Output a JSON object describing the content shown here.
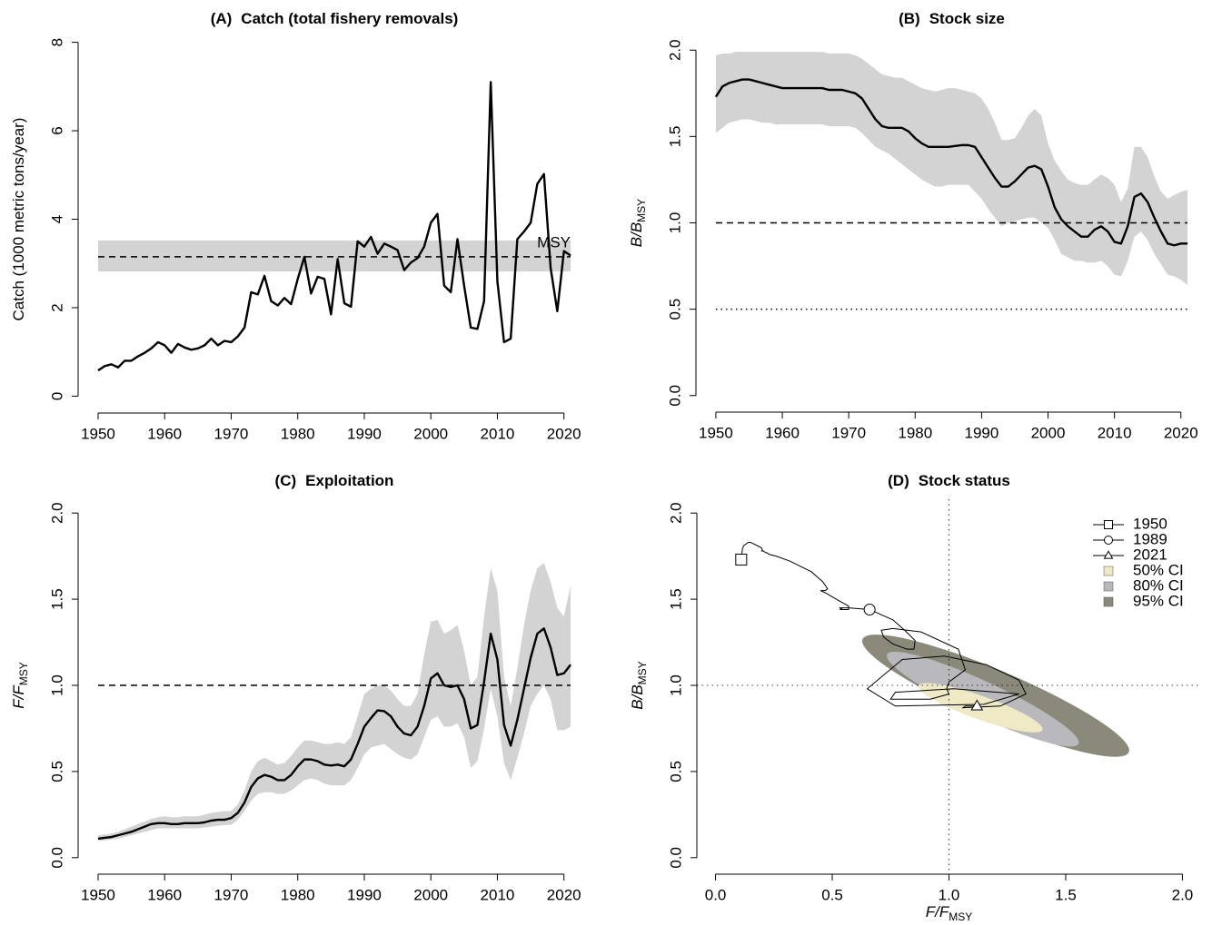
{
  "chart_data": [
    {
      "type": "line",
      "panel": "(A)",
      "title": "Catch (total fishery removals)",
      "ylabel": {
        "main": "Catch (1000 metric tons/year)"
      },
      "x": [
        1950,
        1951,
        1952,
        1953,
        1954,
        1955,
        1956,
        1957,
        1958,
        1959,
        1960,
        1961,
        1962,
        1963,
        1964,
        1965,
        1966,
        1967,
        1968,
        1969,
        1970,
        1971,
        1972,
        1973,
        1974,
        1975,
        1976,
        1977,
        1978,
        1979,
        1980,
        1981,
        1982,
        1983,
        1984,
        1985,
        1986,
        1987,
        1988,
        1989,
        1990,
        1991,
        1992,
        1993,
        1994,
        1995,
        1996,
        1997,
        1998,
        1999,
        2000,
        2001,
        2002,
        2003,
        2004,
        2005,
        2006,
        2007,
        2008,
        2009,
        2010,
        2011,
        2012,
        2013,
        2014,
        2015,
        2016,
        2017,
        2018,
        2019,
        2020,
        2021
      ],
      "xlim": [
        1947,
        2024
      ],
      "xticks": [
        1950,
        1960,
        1970,
        1980,
        1990,
        2000,
        2010,
        2020
      ],
      "ylim": [
        -0.32,
        8.32
      ],
      "yticks": [
        0,
        2,
        4,
        6,
        8
      ],
      "series": [
        {
          "color": "#000000",
          "values": [
            0.58,
            0.68,
            0.72,
            0.65,
            0.8,
            0.8,
            0.9,
            0.98,
            1.08,
            1.22,
            1.15,
            0.98,
            1.18,
            1.1,
            1.05,
            1.08,
            1.15,
            1.3,
            1.15,
            1.25,
            1.22,
            1.35,
            1.55,
            2.35,
            2.3,
            2.72,
            2.15,
            2.05,
            2.22,
            2.08,
            2.65,
            3.15,
            2.32,
            2.7,
            2.65,
            1.85,
            3.1,
            2.1,
            2.02,
            3.5,
            3.38,
            3.6,
            3.22,
            3.45,
            3.38,
            3.3,
            2.85,
            3.02,
            3.12,
            3.38,
            3.92,
            4.12,
            2.5,
            2.35,
            3.55,
            2.5,
            1.55,
            1.52,
            2.15,
            7.1,
            2.6,
            1.22,
            1.3,
            3.55,
            3.72,
            3.92,
            4.8,
            5.02,
            2.9,
            1.92,
            3.28,
            3.18
          ]
        }
      ],
      "reference_lines": [
        {
          "label": "MSY",
          "value": 3.15,
          "lower": 2.82,
          "upper": 3.52,
          "style": "dashed",
          "band_color": "#d3d3d3"
        }
      ]
    },
    {
      "type": "line",
      "panel": "(B)",
      "title": "Stock size",
      "ylabel": {
        "main": "B/B",
        "sub": "MSY"
      },
      "x": [
        1950,
        1951,
        1952,
        1953,
        1954,
        1955,
        1956,
        1957,
        1958,
        1959,
        1960,
        1961,
        1962,
        1963,
        1964,
        1965,
        1966,
        1967,
        1968,
        1969,
        1970,
        1971,
        1972,
        1973,
        1974,
        1975,
        1976,
        1977,
        1978,
        1979,
        1980,
        1981,
        1982,
        1983,
        1984,
        1985,
        1986,
        1987,
        1988,
        1989,
        1990,
        1991,
        1992,
        1993,
        1994,
        1995,
        1996,
        1997,
        1998,
        1999,
        2000,
        2001,
        2002,
        2003,
        2004,
        2005,
        2006,
        2007,
        2008,
        2009,
        2010,
        2011,
        2012,
        2013,
        2014,
        2015,
        2016,
        2017,
        2018,
        2019,
        2020,
        2021
      ],
      "xlim": [
        1947,
        2024
      ],
      "xticks": [
        1950,
        1960,
        1970,
        1980,
        1990,
        2000,
        2010,
        2020
      ],
      "ylim": [
        -0.08,
        2.08
      ],
      "yticks": [
        {
          "value": 0,
          "label": "0.0"
        },
        0.5,
        {
          "value": 1,
          "label": "1.0"
        },
        1.5,
        {
          "value": 2,
          "label": "2.0"
        }
      ],
      "series": [
        {
          "color": "#000000",
          "band_color": "#d3d3d3",
          "values": [
            1.73,
            1.79,
            1.81,
            1.82,
            1.83,
            1.83,
            1.82,
            1.81,
            1.8,
            1.79,
            1.78,
            1.78,
            1.78,
            1.78,
            1.78,
            1.78,
            1.78,
            1.77,
            1.77,
            1.77,
            1.76,
            1.75,
            1.72,
            1.66,
            1.6,
            1.56,
            1.55,
            1.55,
            1.55,
            1.53,
            1.49,
            1.46,
            1.44,
            1.44,
            1.44,
            1.44,
            1.445,
            1.45,
            1.45,
            1.44,
            1.38,
            1.32,
            1.26,
            1.21,
            1.21,
            1.24,
            1.28,
            1.32,
            1.33,
            1.31,
            1.21,
            1.09,
            1.02,
            0.98,
            0.95,
            0.92,
            0.92,
            0.96,
            0.98,
            0.95,
            0.89,
            0.88,
            0.98,
            1.15,
            1.17,
            1.12,
            1.03,
            0.95,
            0.88,
            0.87,
            0.88,
            0.88
          ],
          "upper": [
            1.97,
            1.98,
            1.98,
            1.99,
            1.99,
            1.99,
            1.99,
            1.99,
            1.99,
            1.99,
            1.99,
            1.99,
            1.99,
            1.99,
            1.99,
            1.99,
            1.99,
            1.98,
            1.98,
            1.98,
            1.98,
            1.97,
            1.95,
            1.92,
            1.89,
            1.86,
            1.85,
            1.84,
            1.84,
            1.82,
            1.8,
            1.78,
            1.77,
            1.76,
            1.77,
            1.78,
            1.78,
            1.77,
            1.76,
            1.75,
            1.72,
            1.66,
            1.58,
            1.48,
            1.48,
            1.49,
            1.55,
            1.62,
            1.66,
            1.62,
            1.46,
            1.36,
            1.3,
            1.25,
            1.23,
            1.22,
            1.22,
            1.25,
            1.28,
            1.26,
            1.22,
            1.12,
            1.2,
            1.44,
            1.44,
            1.38,
            1.27,
            1.18,
            1.14,
            1.16,
            1.18,
            1.19
          ],
          "lower": [
            1.52,
            1.55,
            1.58,
            1.59,
            1.6,
            1.6,
            1.59,
            1.58,
            1.58,
            1.57,
            1.57,
            1.57,
            1.57,
            1.57,
            1.57,
            1.57,
            1.57,
            1.56,
            1.56,
            1.56,
            1.56,
            1.55,
            1.52,
            1.48,
            1.44,
            1.42,
            1.4,
            1.37,
            1.34,
            1.31,
            1.28,
            1.25,
            1.23,
            1.21,
            1.21,
            1.22,
            1.22,
            1.22,
            1.22,
            1.18,
            1.14,
            1.08,
            1.03,
            0.98,
            1.0,
            1.01,
            1.02,
            1.03,
            1.03,
            1.0,
            0.97,
            0.9,
            0.82,
            0.8,
            0.78,
            0.78,
            0.77,
            0.77,
            0.78,
            0.75,
            0.7,
            0.69,
            0.78,
            0.92,
            0.95,
            0.9,
            0.82,
            0.76,
            0.7,
            0.69,
            0.67,
            0.64
          ]
        }
      ],
      "reference_lines": [
        {
          "value": 1,
          "style": "dashed"
        },
        {
          "value": 0.5,
          "style": "dotted"
        }
      ]
    },
    {
      "type": "line",
      "panel": "(C)",
      "title": "Exploitation",
      "ylabel": {
        "main": "F/F",
        "sub": "MSY"
      },
      "x": [
        1950,
        1951,
        1952,
        1953,
        1954,
        1955,
        1956,
        1957,
        1958,
        1959,
        1960,
        1961,
        1962,
        1963,
        1964,
        1965,
        1966,
        1967,
        1968,
        1969,
        1970,
        1971,
        1972,
        1973,
        1974,
        1975,
        1976,
        1977,
        1978,
        1979,
        1980,
        1981,
        1982,
        1983,
        1984,
        1985,
        1986,
        1987,
        1988,
        1989,
        1990,
        1991,
        1992,
        1993,
        1994,
        1995,
        1996,
        1997,
        1998,
        1999,
        2000,
        2001,
        2002,
        2003,
        2004,
        2005,
        2006,
        2007,
        2008,
        2009,
        2010,
        2011,
        2012,
        2013,
        2014,
        2015,
        2016,
        2017,
        2018,
        2019,
        2020,
        2021
      ],
      "xlim": [
        1947,
        2024
      ],
      "xticks": [
        1950,
        1960,
        1970,
        1980,
        1990,
        2000,
        2010,
        2020
      ],
      "ylim": [
        -0.08,
        2.08
      ],
      "yticks": [
        {
          "value": 0,
          "label": "0.0"
        },
        0.5,
        {
          "value": 1,
          "label": "1.0"
        },
        1.5,
        {
          "value": 2,
          "label": "2.0"
        }
      ],
      "series": [
        {
          "color": "#000000",
          "band_color": "#d3d3d3",
          "values": [
            0.11,
            0.115,
            0.12,
            0.13,
            0.14,
            0.15,
            0.165,
            0.18,
            0.195,
            0.2,
            0.2,
            0.195,
            0.195,
            0.2,
            0.2,
            0.2,
            0.205,
            0.215,
            0.22,
            0.22,
            0.23,
            0.26,
            0.32,
            0.41,
            0.46,
            0.48,
            0.47,
            0.45,
            0.45,
            0.48,
            0.53,
            0.57,
            0.57,
            0.56,
            0.54,
            0.535,
            0.54,
            0.53,
            0.57,
            0.66,
            0.76,
            0.81,
            0.855,
            0.85,
            0.82,
            0.76,
            0.72,
            0.71,
            0.76,
            0.88,
            1.04,
            1.07,
            1.0,
            0.99,
            1.0,
            0.92,
            0.75,
            0.77,
            1.02,
            1.3,
            1.15,
            0.77,
            0.65,
            0.8,
            0.98,
            1.16,
            1.3,
            1.33,
            1.22,
            1.06,
            1.07,
            1.12
          ],
          "upper": [
            0.13,
            0.135,
            0.14,
            0.15,
            0.165,
            0.18,
            0.195,
            0.21,
            0.225,
            0.235,
            0.24,
            0.235,
            0.235,
            0.24,
            0.24,
            0.24,
            0.25,
            0.26,
            0.265,
            0.27,
            0.27,
            0.31,
            0.39,
            0.5,
            0.56,
            0.58,
            0.56,
            0.54,
            0.55,
            0.59,
            0.64,
            0.68,
            0.68,
            0.67,
            0.66,
            0.66,
            0.67,
            0.66,
            0.7,
            0.82,
            0.95,
            0.98,
            1.0,
            1.0,
            0.97,
            0.92,
            0.88,
            0.88,
            0.95,
            1.18,
            1.37,
            1.38,
            1.3,
            1.32,
            1.35,
            1.2,
            1.0,
            1.05,
            1.4,
            1.68,
            1.55,
            1.05,
            0.88,
            1.1,
            1.35,
            1.55,
            1.68,
            1.71,
            1.6,
            1.45,
            1.4,
            1.58
          ],
          "lower": [
            0.1,
            0.1,
            0.105,
            0.11,
            0.12,
            0.13,
            0.14,
            0.15,
            0.16,
            0.17,
            0.17,
            0.17,
            0.17,
            0.17,
            0.17,
            0.17,
            0.175,
            0.18,
            0.185,
            0.19,
            0.19,
            0.22,
            0.27,
            0.33,
            0.37,
            0.38,
            0.38,
            0.37,
            0.37,
            0.39,
            0.42,
            0.45,
            0.46,
            0.45,
            0.43,
            0.42,
            0.42,
            0.42,
            0.45,
            0.52,
            0.6,
            0.64,
            0.65,
            0.66,
            0.63,
            0.6,
            0.58,
            0.57,
            0.6,
            0.7,
            0.8,
            0.82,
            0.76,
            0.76,
            0.78,
            0.7,
            0.52,
            0.56,
            0.75,
            0.98,
            0.82,
            0.55,
            0.45,
            0.58,
            0.72,
            0.88,
            0.95,
            1.0,
            0.92,
            0.74,
            0.74,
            0.76
          ]
        }
      ],
      "reference_lines": [
        {
          "value": 1,
          "style": "dashed"
        }
      ]
    },
    {
      "type": "phase",
      "panel": "(D)",
      "title": "Stock status",
      "xlabel": {
        "main": "F/F",
        "sub": "MSY"
      },
      "ylabel": {
        "main": "B/B",
        "sub": "MSY"
      },
      "xlim": [
        -0.08,
        2.08
      ],
      "xticks": [
        {
          "value": 0,
          "label": "0.0"
        },
        0.5,
        {
          "value": 1,
          "label": "1.0"
        },
        1.5,
        {
          "value": 2,
          "label": "2.0"
        }
      ],
      "ylim": [
        -0.08,
        2.08
      ],
      "yticks": [
        {
          "value": 0,
          "label": "0.0"
        },
        0.5,
        {
          "value": 1,
          "label": "1.0"
        },
        1.5,
        {
          "value": 2,
          "label": "2.0"
        }
      ],
      "trajectory": {
        "color": "#000000",
        "x": [
          0.11,
          0.115,
          0.12,
          0.13,
          0.14,
          0.15,
          0.165,
          0.18,
          0.195,
          0.2,
          0.2,
          0.195,
          0.195,
          0.2,
          0.2,
          0.2,
          0.205,
          0.215,
          0.22,
          0.22,
          0.23,
          0.26,
          0.32,
          0.41,
          0.46,
          0.48,
          0.47,
          0.45,
          0.45,
          0.48,
          0.53,
          0.57,
          0.57,
          0.56,
          0.54,
          0.535,
          0.54,
          0.53,
          0.57,
          0.66,
          0.76,
          0.81,
          0.855,
          0.85,
          0.82,
          0.76,
          0.72,
          0.71,
          0.76,
          0.88,
          1.04,
          1.07,
          1.0,
          0.99,
          1.0,
          0.92,
          0.75,
          0.77,
          1.02,
          1.3,
          1.15,
          0.77,
          0.65,
          0.8,
          0.98,
          1.16,
          1.3,
          1.33,
          1.22,
          1.06,
          1.07,
          1.12
        ],
        "y": [
          1.73,
          1.79,
          1.81,
          1.82,
          1.83,
          1.83,
          1.82,
          1.81,
          1.8,
          1.79,
          1.78,
          1.78,
          1.78,
          1.78,
          1.78,
          1.78,
          1.78,
          1.77,
          1.77,
          1.77,
          1.76,
          1.75,
          1.72,
          1.66,
          1.6,
          1.56,
          1.55,
          1.55,
          1.55,
          1.53,
          1.49,
          1.46,
          1.44,
          1.44,
          1.44,
          1.44,
          1.445,
          1.45,
          1.45,
          1.44,
          1.38,
          1.32,
          1.26,
          1.21,
          1.21,
          1.24,
          1.28,
          1.32,
          1.33,
          1.31,
          1.21,
          1.09,
          1.02,
          0.98,
          0.95,
          0.92,
          0.92,
          0.96,
          0.98,
          0.95,
          0.89,
          0.88,
          0.98,
          1.15,
          1.17,
          1.12,
          1.03,
          0.95,
          0.88,
          0.87,
          0.88,
          0.88
        ]
      },
      "markers": [
        {
          "name": "1950",
          "shape": "square",
          "x": 0.11,
          "y": 1.73
        },
        {
          "name": "1989",
          "shape": "circle",
          "x": 0.66,
          "y": 1.44
        },
        {
          "name": "2021",
          "shape": "triangle",
          "x": 1.12,
          "y": 0.88
        }
      ],
      "ci_regions": [
        {
          "name": "50% CI",
          "color": "#efe9c6",
          "center": [
            1.135,
            0.87
          ],
          "axis1": [
            0.265,
            -0.13
          ],
          "axis2": [
            0.025,
            0.06
          ]
        },
        {
          "name": "80% CI",
          "color": "#b9b9bd",
          "center": [
            1.145,
            0.92
          ],
          "axis1": [
            0.41,
            -0.26
          ],
          "axis2": [
            0.035,
            0.09
          ]
        },
        {
          "name": "95% CI",
          "color": "#8b8a7a",
          "center": [
            1.2,
            0.94
          ],
          "axis1": [
            0.57,
            -0.33
          ],
          "axis2": [
            0.05,
            0.13
          ]
        }
      ],
      "reference_lines": [
        {
          "axis": "x",
          "value": 1,
          "style": "dotted"
        },
        {
          "axis": "y",
          "value": 1,
          "style": "dotted"
        }
      ],
      "legend": "topright"
    }
  ]
}
